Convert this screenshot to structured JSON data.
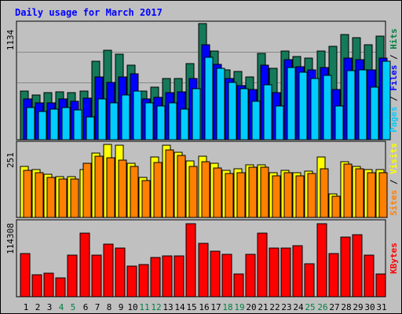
{
  "chart_data": {
    "type": "bar",
    "title": "Daily usage for March 2017",
    "categories": [
      "1",
      "2",
      "3",
      "4",
      "5",
      "6",
      "7",
      "8",
      "9",
      "10",
      "11",
      "12",
      "13",
      "14",
      "15",
      "16",
      "17",
      "18",
      "19",
      "20",
      "21",
      "22",
      "23",
      "24",
      "25",
      "26",
      "27",
      "28",
      "29",
      "30",
      "31"
    ],
    "weekend_days": [
      "4",
      "5",
      "11",
      "12",
      "18",
      "19",
      "25",
      "26"
    ],
    "panels": [
      {
        "max_label": "1134",
        "ylim": [
          0,
          1134
        ],
        "legend": [
          {
            "label": "Pages",
            "color": "#00ccff"
          },
          {
            "label": "Files",
            "color": "#0000ff"
          },
          {
            "label": "Hits",
            "color": "#008040"
          }
        ],
        "separator": " / ",
        "series": [
          {
            "name": "Hits",
            "color": "#157a5a",
            "values": [
              480,
              440,
              460,
              470,
              460,
              480,
              770,
              880,
              840,
              730,
              480,
              520,
              600,
              600,
              750,
              1140,
              870,
              690,
              670,
              620,
              850,
              700,
              870,
              820,
              800,
              870,
              920,
              1030,
              1000,
              930,
              1020
            ]
          },
          {
            "name": "Files",
            "color": "#0000ff",
            "values": [
              400,
              360,
              360,
              400,
              380,
              410,
              620,
              560,
              620,
              650,
              400,
              420,
              460,
              470,
              600,
              930,
              740,
              600,
              530,
              490,
              730,
              460,
              790,
              720,
              690,
              710,
              490,
              800,
              790,
              690,
              800
            ]
          },
          {
            "name": "Pages",
            "color": "#00ccff",
            "values": [
              320,
              280,
              300,
              320,
              290,
              220,
              400,
              360,
              440,
              480,
              360,
              330,
              360,
              300,
              500,
              810,
              700,
              560,
              500,
              380,
              540,
              330,
              710,
              660,
              600,
              630,
              330,
              680,
              690,
              520,
              770
            ]
          }
        ]
      },
      {
        "max_label": "251",
        "ylim": [
          0,
          251
        ],
        "legend": [
          {
            "label": "Sites",
            "color": "#ff8000"
          },
          {
            "label": "Visits",
            "color": "#ffff00"
          }
        ],
        "separator": " / ",
        "series": [
          {
            "name": "Visits",
            "color": "#ffff00",
            "values": [
              175,
              165,
              148,
              140,
              141,
              165,
              220,
              251,
              247,
              185,
              138,
              208,
              247,
              225,
              193,
              210,
              187,
              162,
              166,
              181,
              181,
              154,
              163,
              154,
              160,
              209,
              80,
              192,
              175,
              164,
              165
            ]
          },
          {
            "name": "Sites",
            "color": "#ff8000",
            "values": [
              163,
              155,
              138,
              131,
              132,
              186,
              210,
              204,
              196,
              175,
              128,
              190,
              232,
              213,
              175,
              192,
              171,
              152,
              155,
              173,
              172,
              144,
              153,
              144,
              150,
              166,
              73,
              184,
              167,
              154,
              155
            ]
          }
        ]
      },
      {
        "max_label": "114308",
        "ylim": [
          0,
          114308
        ],
        "legend": [
          {
            "label": "KBytes",
            "color": "#ff0000"
          }
        ],
        "separator": "",
        "series": [
          {
            "name": "KBytes",
            "color": "#ff0000",
            "values": [
              66500,
              34000,
              36500,
              29000,
              64000,
              98500,
              65000,
              82000,
              75500,
              48000,
              50000,
              61000,
              63500,
              63500,
              113500,
              83000,
              70000,
              65500,
              35000,
              66000,
              99000,
              76000,
              76000,
              78500,
              51000,
              113500,
              67000,
              93000,
              96000,
              65000,
              35500
            ]
          }
        ]
      }
    ]
  }
}
